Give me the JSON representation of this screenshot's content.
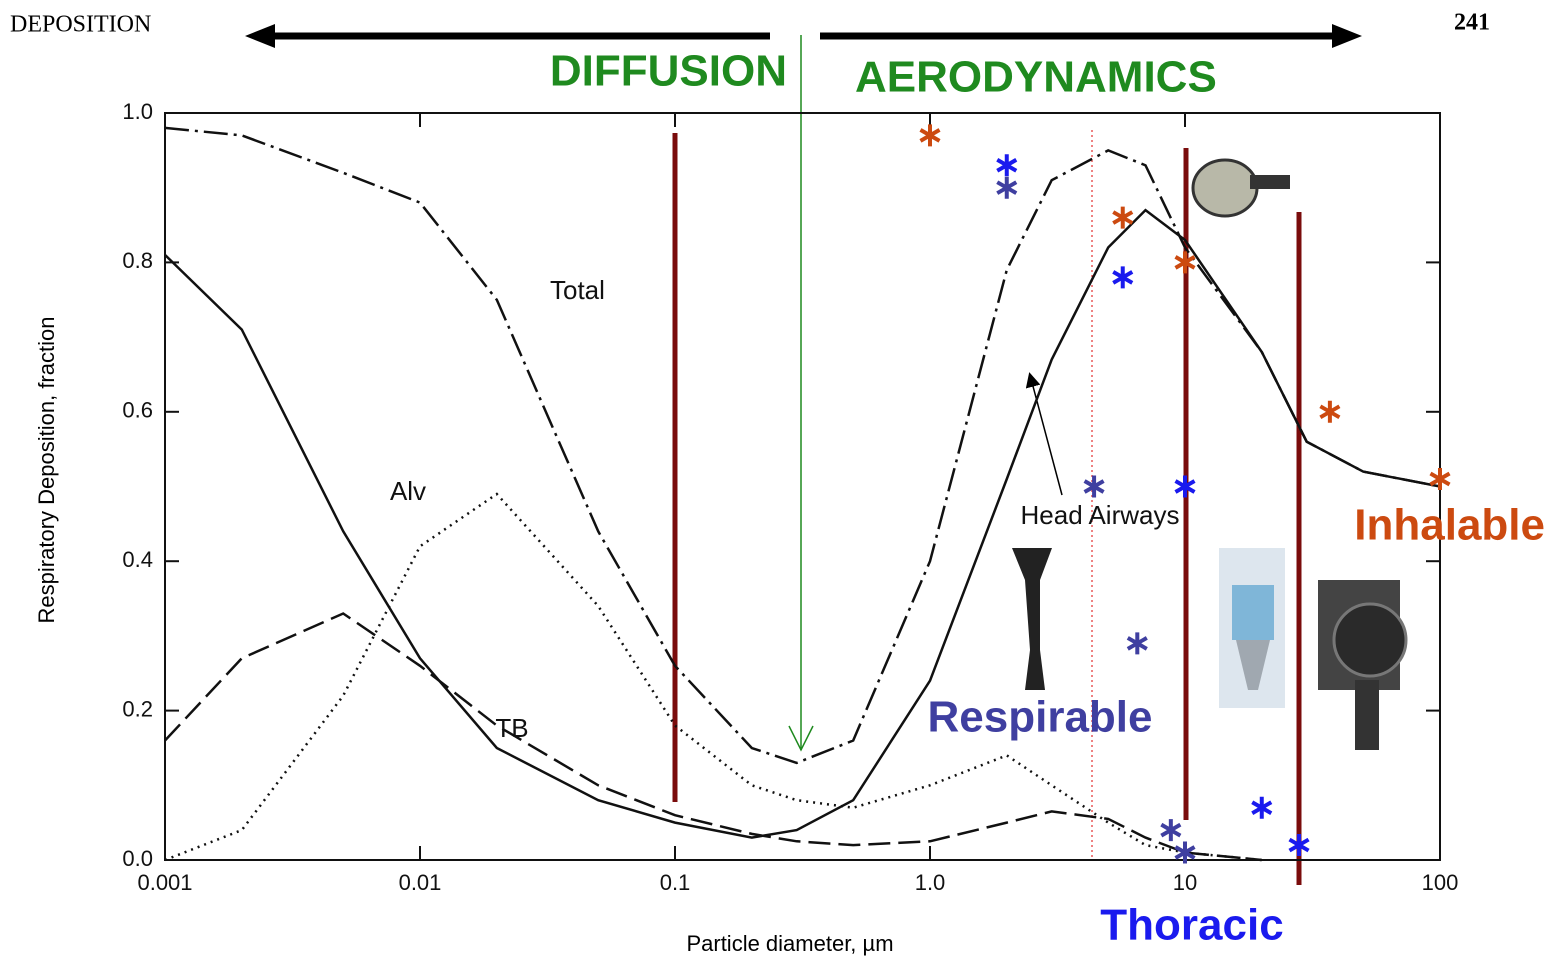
{
  "header": {
    "left": "DEPOSITION",
    "page_number": "241",
    "regions": [
      "DIFFUSION",
      "AERODYNAMICS"
    ]
  },
  "chart_data": {
    "type": "line",
    "x_label": "Particle diameter, µm",
    "y_label": "Respiratory Deposition, fraction",
    "xscale": "log",
    "xlim": [
      0.001,
      100
    ],
    "ylim": [
      0,
      1
    ],
    "xticks": [
      0.001,
      0.01,
      0.1,
      {
        "value": 1,
        "label": "1.0"
      },
      10,
      100
    ],
    "yticks": [
      {
        "value": 0,
        "label": "0.0"
      },
      0.2,
      0.4,
      0.6,
      0.8,
      {
        "value": 1,
        "label": "1.0"
      }
    ],
    "x": [
      0.001,
      0.002,
      0.005,
      0.01,
      0.02,
      0.05,
      0.1,
      0.2,
      0.3,
      0.5,
      1,
      2,
      3,
      5,
      7,
      10,
      20,
      30,
      50,
      100
    ],
    "series": [
      {
        "name": "Total",
        "color": "#111111",
        "dash": "dashdot",
        "values": [
          0.98,
          0.97,
          0.92,
          0.88,
          0.75,
          0.44,
          0.26,
          0.15,
          0.13,
          0.16,
          0.4,
          0.79,
          0.91,
          0.95,
          0.93,
          0.82,
          0.68,
          0.56,
          0.52,
          0.5
        ]
      },
      {
        "name": "Head Airways",
        "color": "#111111",
        "dash": "solid",
        "values": [
          0.81,
          0.71,
          0.44,
          0.27,
          0.15,
          0.08,
          0.05,
          0.03,
          0.04,
          0.08,
          0.24,
          0.51,
          0.67,
          0.82,
          0.87,
          0.83,
          0.68,
          0.56,
          0.52,
          0.5
        ]
      },
      {
        "name": "TB",
        "color": "#111111",
        "dash": "dashed",
        "values": [
          0.16,
          0.27,
          0.33,
          0.26,
          0.18,
          0.1,
          0.06,
          0.035,
          0.025,
          0.02,
          0.025,
          0.05,
          0.065,
          0.055,
          0.03,
          0.01,
          0.0,
          null,
          null,
          null
        ]
      },
      {
        "name": "Alv",
        "color": "#111111",
        "dash": "dotted",
        "values": [
          0.0,
          0.04,
          0.22,
          0.42,
          0.49,
          0.34,
          0.18,
          0.1,
          0.08,
          0.07,
          0.1,
          0.14,
          0.1,
          0.05,
          0.02,
          0.01,
          0.0,
          null,
          null,
          null
        ]
      },
      {
        "name": "Inhalable",
        "color": "#cc4a10",
        "type": "scatter",
        "x": [
          1,
          5.7,
          10,
          37,
          100
        ],
        "values": [
          0.97,
          0.86,
          0.8,
          0.6,
          0.51
        ]
      },
      {
        "name": "Thoracic",
        "color": "#1a1aee",
        "type": "scatter",
        "x": [
          2,
          5.7,
          10,
          20,
          28
        ],
        "values": [
          0.93,
          0.78,
          0.5,
          0.07,
          0.02
        ]
      },
      {
        "name": "Respirable",
        "color": "#3f3fa0",
        "type": "scatter",
        "x": [
          2,
          4.4,
          6.5,
          8.8,
          10
        ],
        "values": [
          0.9,
          0.5,
          0.29,
          0.04,
          0.01
        ]
      }
    ]
  }
}
